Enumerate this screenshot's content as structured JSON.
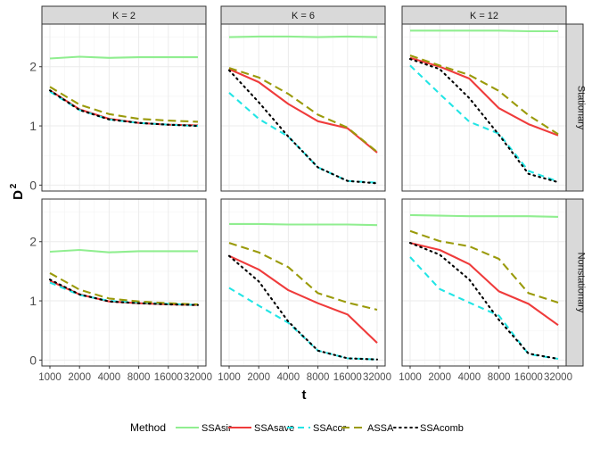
{
  "chart_data": {
    "type": "line",
    "xlabel": "t",
    "ylabel_base": "D",
    "ylabel_sup": "2",
    "x_scale": "log2",
    "x": [
      1000,
      2000,
      4000,
      8000,
      16000,
      32000
    ],
    "x_tick_labels": [
      "1000",
      "2000",
      "4000",
      "8000",
      "16000",
      "32000"
    ],
    "ylim": [
      -0.1,
      2.72
    ],
    "y_ticks": [
      0,
      1,
      2
    ],
    "y_tick_labels": [
      "0",
      "1",
      "2"
    ],
    "columns": [
      "K = 2",
      "K = 6",
      "K = 12"
    ],
    "rows": [
      "Stationary",
      "Nonstationary"
    ],
    "legend": {
      "title": "Method",
      "entries": [
        "SSAsir",
        "SSAsave",
        "SSAcor",
        "ASSA",
        "SSAcomb"
      ]
    },
    "series_styles": {
      "SSAsir": {
        "color": "#90ee90",
        "dash": ""
      },
      "SSAsave": {
        "color": "#ef3b3b",
        "dash": ""
      },
      "SSAcor": {
        "color": "#22e5e5",
        "dash": "7,5"
      },
      "ASSA": {
        "color": "#9a9a0a",
        "dash": "9,5"
      },
      "SSAcomb": {
        "color": "#000000",
        "dash": "1.6,4.5"
      }
    },
    "panels": [
      {
        "row": "Stationary",
        "col": "K = 2",
        "series": [
          {
            "name": "SSAsir",
            "values": [
              2.14,
              2.17,
              2.15,
              2.16,
              2.16,
              2.16
            ]
          },
          {
            "name": "SSAsave",
            "values": [
              1.6,
              1.28,
              1.12,
              1.05,
              1.02,
              1.01
            ]
          },
          {
            "name": "SSAcor",
            "values": [
              1.58,
              1.27,
              1.11,
              1.05,
              1.02,
              1.0
            ]
          },
          {
            "name": "ASSA",
            "values": [
              1.66,
              1.36,
              1.2,
              1.12,
              1.09,
              1.07
            ]
          },
          {
            "name": "SSAcomb",
            "values": [
              1.6,
              1.27,
              1.11,
              1.05,
              1.02,
              1.0
            ]
          }
        ]
      },
      {
        "row": "Stationary",
        "col": "K = 6",
        "series": [
          {
            "name": "SSAsir",
            "values": [
              2.5,
              2.51,
              2.51,
              2.5,
              2.51,
              2.5
            ]
          },
          {
            "name": "SSAsave",
            "values": [
              1.96,
              1.74,
              1.37,
              1.08,
              0.96,
              0.55
            ]
          },
          {
            "name": "SSAcor",
            "values": [
              1.56,
              1.12,
              0.82,
              0.3,
              0.07,
              0.04
            ]
          },
          {
            "name": "ASSA",
            "values": [
              1.98,
              1.82,
              1.54,
              1.19,
              0.97,
              0.56
            ]
          },
          {
            "name": "SSAcomb",
            "values": [
              1.94,
              1.4,
              0.82,
              0.3,
              0.07,
              0.03
            ]
          }
        ]
      },
      {
        "row": "Stationary",
        "col": "K = 12",
        "series": [
          {
            "name": "SSAsir",
            "values": [
              2.61,
              2.61,
              2.61,
              2.61,
              2.6,
              2.6
            ]
          },
          {
            "name": "SSAsave",
            "values": [
              2.15,
              2.0,
              1.8,
              1.3,
              1.03,
              0.84
            ]
          },
          {
            "name": "SSAcor",
            "values": [
              2.02,
              1.54,
              1.07,
              0.87,
              0.24,
              0.06
            ]
          },
          {
            "name": "ASSA",
            "values": [
              2.19,
              2.02,
              1.86,
              1.59,
              1.18,
              0.86
            ]
          },
          {
            "name": "SSAcomb",
            "values": [
              2.13,
              1.96,
              1.47,
              0.85,
              0.19,
              0.05
            ]
          }
        ]
      },
      {
        "row": "Nonstationary",
        "col": "K = 2",
        "series": [
          {
            "name": "SSAsir",
            "values": [
              1.83,
              1.86,
              1.82,
              1.84,
              1.84,
              1.84
            ]
          },
          {
            "name": "SSAsave",
            "values": [
              1.34,
              1.11,
              0.99,
              0.96,
              0.94,
              0.93
            ]
          },
          {
            "name": "SSAcor",
            "values": [
              1.31,
              1.1,
              1.0,
              0.97,
              0.95,
              0.93
            ]
          },
          {
            "name": "ASSA",
            "values": [
              1.47,
              1.19,
              1.04,
              0.99,
              0.96,
              0.94
            ]
          },
          {
            "name": "SSAcomb",
            "values": [
              1.36,
              1.11,
              0.99,
              0.96,
              0.94,
              0.93
            ]
          }
        ]
      },
      {
        "row": "Nonstationary",
        "col": "K = 6",
        "series": [
          {
            "name": "SSAsir",
            "values": [
              2.3,
              2.3,
              2.29,
              2.29,
              2.29,
              2.28
            ]
          },
          {
            "name": "SSAsave",
            "values": [
              1.76,
              1.53,
              1.18,
              0.96,
              0.77,
              0.29
            ]
          },
          {
            "name": "SSAcor",
            "values": [
              1.22,
              0.92,
              0.63,
              0.16,
              0.03,
              0.01
            ]
          },
          {
            "name": "ASSA",
            "values": [
              1.98,
              1.82,
              1.57,
              1.13,
              0.97,
              0.85
            ]
          },
          {
            "name": "SSAcomb",
            "values": [
              1.76,
              1.33,
              0.65,
              0.16,
              0.03,
              0.01
            ]
          }
        ]
      },
      {
        "row": "Nonstationary",
        "col": "K = 12",
        "series": [
          {
            "name": "SSAsir",
            "values": [
              2.45,
              2.44,
              2.43,
              2.43,
              2.43,
              2.42
            ]
          },
          {
            "name": "SSAsave",
            "values": [
              1.98,
              1.86,
              1.62,
              1.16,
              0.95,
              0.59
            ]
          },
          {
            "name": "SSAcor",
            "values": [
              1.74,
              1.2,
              0.97,
              0.75,
              0.1,
              0.02
            ]
          },
          {
            "name": "ASSA",
            "values": [
              2.18,
              2.01,
              1.92,
              1.71,
              1.13,
              0.97
            ]
          },
          {
            "name": "SSAcomb",
            "values": [
              1.98,
              1.78,
              1.36,
              0.68,
              0.11,
              0.02
            ]
          }
        ]
      }
    ]
  }
}
